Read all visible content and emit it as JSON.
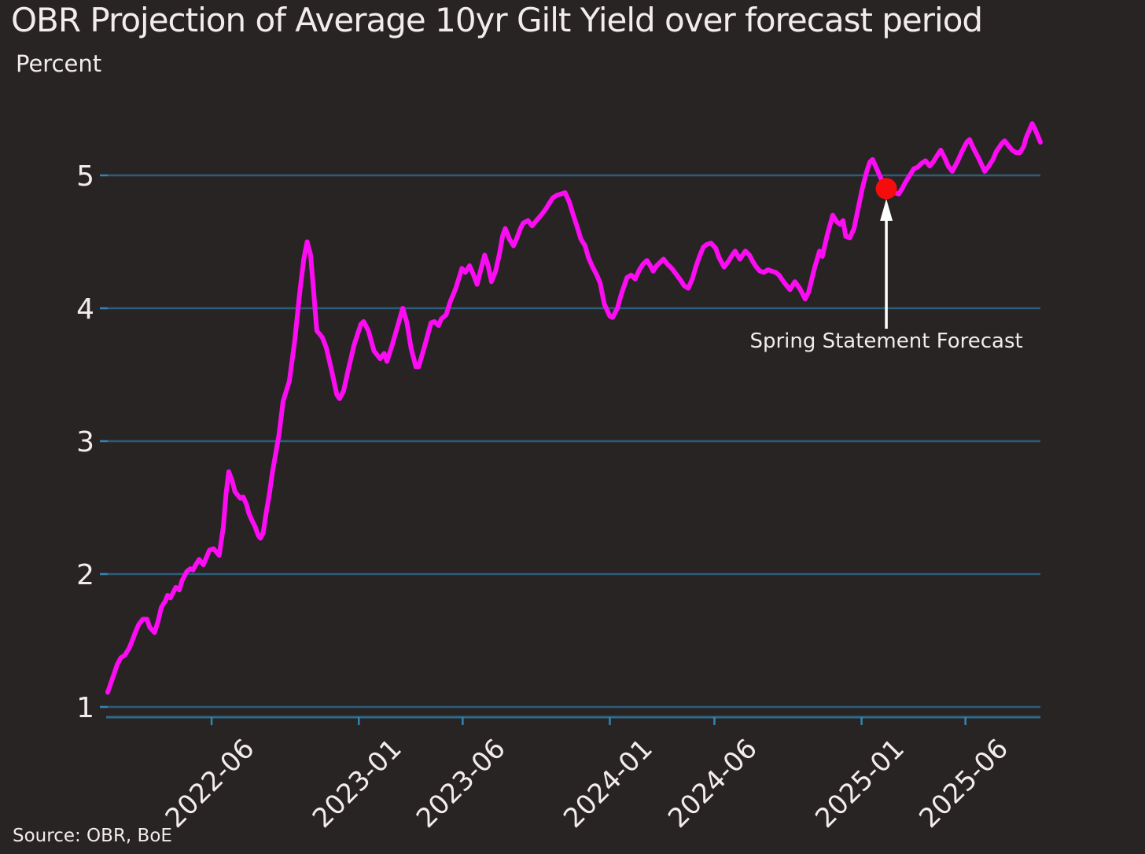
{
  "header": {
    "title": "OBR Projection of Average 10yr Gilt Yield over forecast period",
    "unit_label": "Percent"
  },
  "footer": {
    "source": "Source: OBR, BoE"
  },
  "colors": {
    "background": "#292424",
    "text": "#f2ecec",
    "line": "#fb0cf2",
    "gridline": "#2b5e7a",
    "spine": "#2f6b89",
    "tick_mark": "#3584b0",
    "dot": "#f50d0d",
    "arrow": "#ffffff"
  },
  "chart_data": {
    "type": "line",
    "title": "OBR Projection of Average 10yr Gilt Yield over forecast period",
    "xlabel": "",
    "ylabel": "Percent",
    "legend": "none",
    "grid": "horizontal",
    "ylim": [
      0.92,
      5.6
    ],
    "x_range": [
      "2022-01-01",
      "2025-09-18"
    ],
    "y_ticks": [
      1,
      2,
      3,
      4,
      5
    ],
    "x_ticks": [
      "2022-06",
      "2023-01",
      "2023-06",
      "2024-01",
      "2024-06",
      "2025-01",
      "2025-06"
    ],
    "annotation": {
      "text": "Spring Statement Forecast",
      "date": "2025-02-06",
      "value": 4.9
    },
    "series": [
      {
        "name": "Average 10yr gilt yield",
        "points": [
          [
            "2022-01-01",
            1.11
          ],
          [
            "2022-01-07",
            1.2
          ],
          [
            "2022-01-15",
            1.32
          ],
          [
            "2022-01-20",
            1.37
          ],
          [
            "2022-01-26",
            1.39
          ],
          [
            "2022-02-01",
            1.44
          ],
          [
            "2022-02-05",
            1.49
          ],
          [
            "2022-02-10",
            1.56
          ],
          [
            "2022-02-15",
            1.62
          ],
          [
            "2022-02-21",
            1.66
          ],
          [
            "2022-02-27",
            1.66
          ],
          [
            "2022-03-03",
            1.6
          ],
          [
            "2022-03-10",
            1.56
          ],
          [
            "2022-03-15",
            1.64
          ],
          [
            "2022-03-20",
            1.75
          ],
          [
            "2022-03-26",
            1.8
          ],
          [
            "2022-03-29",
            1.84
          ],
          [
            "2022-04-02",
            1.82
          ],
          [
            "2022-04-07",
            1.87
          ],
          [
            "2022-04-10",
            1.9
          ],
          [
            "2022-04-15",
            1.88
          ],
          [
            "2022-04-19",
            1.95
          ],
          [
            "2022-04-22",
            1.98
          ],
          [
            "2022-04-26",
            2.02
          ],
          [
            "2022-05-01",
            2.04
          ],
          [
            "2022-05-05",
            2.03
          ],
          [
            "2022-05-09",
            2.07
          ],
          [
            "2022-05-14",
            2.11
          ],
          [
            "2022-05-20",
            2.07
          ],
          [
            "2022-05-24",
            2.12
          ],
          [
            "2022-05-29",
            2.18
          ],
          [
            "2022-06-04",
            2.19
          ],
          [
            "2022-06-09",
            2.16
          ],
          [
            "2022-06-12",
            2.14
          ],
          [
            "2022-06-18",
            2.35
          ],
          [
            "2022-06-22",
            2.6
          ],
          [
            "2022-06-26",
            2.77
          ],
          [
            "2022-07-01",
            2.7
          ],
          [
            "2022-07-05",
            2.62
          ],
          [
            "2022-07-08",
            2.6
          ],
          [
            "2022-07-13",
            2.57
          ],
          [
            "2022-07-17",
            2.58
          ],
          [
            "2022-07-22",
            2.52
          ],
          [
            "2022-07-25",
            2.46
          ],
          [
            "2022-07-30",
            2.4
          ],
          [
            "2022-08-03",
            2.36
          ],
          [
            "2022-08-08",
            2.29
          ],
          [
            "2022-08-11",
            2.27
          ],
          [
            "2022-08-15",
            2.31
          ],
          [
            "2022-08-19",
            2.45
          ],
          [
            "2022-08-24",
            2.6
          ],
          [
            "2022-08-28",
            2.75
          ],
          [
            "2022-09-02",
            2.9
          ],
          [
            "2022-09-07",
            3.05
          ],
          [
            "2022-09-13",
            3.3
          ],
          [
            "2022-09-22",
            3.45
          ],
          [
            "2022-09-30",
            3.76
          ],
          [
            "2022-10-07",
            4.11
          ],
          [
            "2022-10-13",
            4.37
          ],
          [
            "2022-10-18",
            4.5
          ],
          [
            "2022-10-23",
            4.4
          ],
          [
            "2022-10-27",
            4.15
          ],
          [
            "2022-11-01",
            3.83
          ],
          [
            "2022-11-06",
            3.8
          ],
          [
            "2022-11-09",
            3.78
          ],
          [
            "2022-11-15",
            3.7
          ],
          [
            "2022-11-23",
            3.52
          ],
          [
            "2022-11-30",
            3.35
          ],
          [
            "2022-12-04",
            3.32
          ],
          [
            "2022-12-10",
            3.38
          ],
          [
            "2022-12-16",
            3.52
          ],
          [
            "2022-12-25",
            3.72
          ],
          [
            "2023-01-04",
            3.88
          ],
          [
            "2023-01-08",
            3.9
          ],
          [
            "2023-01-15",
            3.83
          ],
          [
            "2023-01-23",
            3.68
          ],
          [
            "2023-02-01",
            3.62
          ],
          [
            "2023-02-07",
            3.66
          ],
          [
            "2023-02-11",
            3.6
          ],
          [
            "2023-02-19",
            3.73
          ],
          [
            "2023-03-01",
            3.91
          ],
          [
            "2023-03-06",
            4.0
          ],
          [
            "2023-03-12",
            3.89
          ],
          [
            "2023-03-18",
            3.7
          ],
          [
            "2023-03-25",
            3.56
          ],
          [
            "2023-03-29",
            3.56
          ],
          [
            "2023-04-06",
            3.7
          ],
          [
            "2023-04-16",
            3.89
          ],
          [
            "2023-04-21",
            3.9
          ],
          [
            "2023-04-27",
            3.87
          ],
          [
            "2023-05-01",
            3.92
          ],
          [
            "2023-05-08",
            3.95
          ],
          [
            "2023-05-14",
            4.05
          ],
          [
            "2023-05-22",
            4.15
          ],
          [
            "2023-05-31",
            4.3
          ],
          [
            "2023-06-05",
            4.27
          ],
          [
            "2023-06-11",
            4.32
          ],
          [
            "2023-06-17",
            4.25
          ],
          [
            "2023-06-22",
            4.18
          ],
          [
            "2023-06-28",
            4.3
          ],
          [
            "2023-07-03",
            4.4
          ],
          [
            "2023-07-08",
            4.32
          ],
          [
            "2023-07-13",
            4.2
          ],
          [
            "2023-07-19",
            4.28
          ],
          [
            "2023-07-25",
            4.42
          ],
          [
            "2023-07-29",
            4.54
          ],
          [
            "2023-08-02",
            4.6
          ],
          [
            "2023-08-08",
            4.52
          ],
          [
            "2023-08-14",
            4.47
          ],
          [
            "2023-08-19",
            4.53
          ],
          [
            "2023-08-24",
            4.6
          ],
          [
            "2023-08-28",
            4.64
          ],
          [
            "2023-09-04",
            4.66
          ],
          [
            "2023-09-10",
            4.62
          ],
          [
            "2023-09-18",
            4.67
          ],
          [
            "2023-09-23",
            4.7
          ],
          [
            "2023-09-29",
            4.74
          ],
          [
            "2023-10-05",
            4.79
          ],
          [
            "2023-10-10",
            4.83
          ],
          [
            "2023-10-16",
            4.85
          ],
          [
            "2023-10-22",
            4.86
          ],
          [
            "2023-10-28",
            4.87
          ],
          [
            "2023-11-03",
            4.8
          ],
          [
            "2023-11-09",
            4.7
          ],
          [
            "2023-11-14",
            4.62
          ],
          [
            "2023-11-20",
            4.52
          ],
          [
            "2023-11-26",
            4.47
          ],
          [
            "2023-12-01",
            4.38
          ],
          [
            "2023-12-07",
            4.31
          ],
          [
            "2023-12-13",
            4.25
          ],
          [
            "2023-12-18",
            4.19
          ],
          [
            "2023-12-24",
            4.03
          ],
          [
            "2024-01-01",
            3.94
          ],
          [
            "2024-01-05",
            3.93
          ],
          [
            "2024-01-12",
            4.0
          ],
          [
            "2024-01-18",
            4.11
          ],
          [
            "2024-01-26",
            4.23
          ],
          [
            "2024-02-01",
            4.25
          ],
          [
            "2024-02-07",
            4.22
          ],
          [
            "2024-02-13",
            4.29
          ],
          [
            "2024-02-18",
            4.33
          ],
          [
            "2024-02-24",
            4.36
          ],
          [
            "2024-03-01",
            4.31
          ],
          [
            "2024-03-04",
            4.28
          ],
          [
            "2024-03-09",
            4.32
          ],
          [
            "2024-03-15",
            4.35
          ],
          [
            "2024-03-19",
            4.37
          ],
          [
            "2024-03-25",
            4.33
          ],
          [
            "2024-03-31",
            4.3
          ],
          [
            "2024-04-06",
            4.26
          ],
          [
            "2024-04-13",
            4.21
          ],
          [
            "2024-04-18",
            4.17
          ],
          [
            "2024-04-24",
            4.15
          ],
          [
            "2024-04-30",
            4.22
          ],
          [
            "2024-05-05",
            4.31
          ],
          [
            "2024-05-11",
            4.4
          ],
          [
            "2024-05-16",
            4.46
          ],
          [
            "2024-05-21",
            4.48
          ],
          [
            "2024-05-27",
            4.49
          ],
          [
            "2024-06-03",
            4.45
          ],
          [
            "2024-06-08",
            4.38
          ],
          [
            "2024-06-15",
            4.31
          ],
          [
            "2024-06-21",
            4.35
          ],
          [
            "2024-06-27",
            4.4
          ],
          [
            "2024-07-01",
            4.43
          ],
          [
            "2024-07-08",
            4.37
          ],
          [
            "2024-07-16",
            4.43
          ],
          [
            "2024-07-22",
            4.4
          ],
          [
            "2024-07-27",
            4.35
          ],
          [
            "2024-08-01",
            4.31
          ],
          [
            "2024-08-06",
            4.28
          ],
          [
            "2024-08-12",
            4.27
          ],
          [
            "2024-08-18",
            4.29
          ],
          [
            "2024-08-23",
            4.28
          ],
          [
            "2024-08-29",
            4.27
          ],
          [
            "2024-09-03",
            4.25
          ],
          [
            "2024-09-11",
            4.19
          ],
          [
            "2024-09-19",
            4.14
          ],
          [
            "2024-09-26",
            4.2
          ],
          [
            "2024-10-03",
            4.15
          ],
          [
            "2024-10-11",
            4.07
          ],
          [
            "2024-10-16",
            4.12
          ],
          [
            "2024-10-25",
            4.31
          ],
          [
            "2024-11-01",
            4.43
          ],
          [
            "2024-11-05",
            4.39
          ],
          [
            "2024-11-12",
            4.55
          ],
          [
            "2024-11-20",
            4.7
          ],
          [
            "2024-11-26",
            4.65
          ],
          [
            "2024-12-01",
            4.63
          ],
          [
            "2024-12-05",
            4.66
          ],
          [
            "2024-12-09",
            4.54
          ],
          [
            "2024-12-15",
            4.53
          ],
          [
            "2024-12-21",
            4.6
          ],
          [
            "2024-12-27",
            4.75
          ],
          [
            "2025-01-02",
            4.9
          ],
          [
            "2025-01-08",
            5.02
          ],
          [
            "2025-01-13",
            5.1
          ],
          [
            "2025-01-17",
            5.12
          ],
          [
            "2025-01-23",
            5.05
          ],
          [
            "2025-01-29",
            4.98
          ],
          [
            "2025-02-01",
            4.94
          ],
          [
            "2025-02-06",
            4.9
          ],
          [
            "2025-02-12",
            4.88
          ],
          [
            "2025-02-18",
            4.87
          ],
          [
            "2025-02-24",
            4.86
          ],
          [
            "2025-03-01",
            4.9
          ],
          [
            "2025-03-06",
            4.95
          ],
          [
            "2025-03-12",
            5.0
          ],
          [
            "2025-03-18",
            5.05
          ],
          [
            "2025-03-23",
            5.06
          ],
          [
            "2025-03-29",
            5.09
          ],
          [
            "2025-04-04",
            5.11
          ],
          [
            "2025-04-10",
            5.07
          ],
          [
            "2025-04-15",
            5.1
          ],
          [
            "2025-04-21",
            5.15
          ],
          [
            "2025-04-26",
            5.19
          ],
          [
            "2025-05-02",
            5.13
          ],
          [
            "2025-05-07",
            5.07
          ],
          [
            "2025-05-13",
            5.03
          ],
          [
            "2025-05-20",
            5.1
          ],
          [
            "2025-05-27",
            5.18
          ],
          [
            "2025-06-03",
            5.25
          ],
          [
            "2025-06-07",
            5.27
          ],
          [
            "2025-06-12",
            5.21
          ],
          [
            "2025-06-20",
            5.13
          ],
          [
            "2025-06-29",
            5.03
          ],
          [
            "2025-07-05",
            5.07
          ],
          [
            "2025-07-11",
            5.12
          ],
          [
            "2025-07-16",
            5.18
          ],
          [
            "2025-07-24",
            5.24
          ],
          [
            "2025-07-28",
            5.26
          ],
          [
            "2025-08-03",
            5.22
          ],
          [
            "2025-08-08",
            5.19
          ],
          [
            "2025-08-14",
            5.17
          ],
          [
            "2025-08-19",
            5.17
          ],
          [
            "2025-08-25",
            5.22
          ],
          [
            "2025-08-28",
            5.28
          ],
          [
            "2025-09-02",
            5.34
          ],
          [
            "2025-09-06",
            5.39
          ],
          [
            "2025-09-10",
            5.35
          ],
          [
            "2025-09-14",
            5.3
          ],
          [
            "2025-09-18",
            5.25
          ]
        ]
      }
    ]
  }
}
